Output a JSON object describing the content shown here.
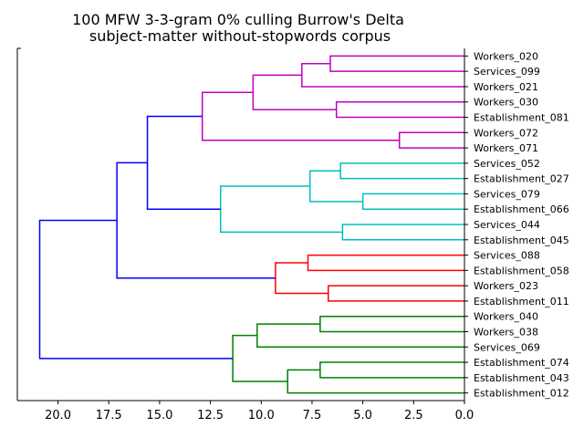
{
  "chart_data": {
    "type": "dendrogram",
    "title_lines": [
      "100 MFW 3-3-gram 0% culling Burrow's Delta",
      "subject-matter without-stopwords corpus"
    ],
    "orientation": "left",
    "xlim": [
      22.0,
      0.0
    ],
    "xticks": [
      20.0,
      17.5,
      15.0,
      12.5,
      10.0,
      7.5,
      5.0,
      2.5,
      0.0
    ],
    "xtick_labels": [
      "20.0",
      "17.5",
      "15.0",
      "12.5",
      "10.0",
      "7.5",
      "5.0",
      "2.5",
      "0.0"
    ],
    "leaves": [
      "Workers_020",
      "Services_099",
      "Workers_021",
      "Workers_030",
      "Establishment_081",
      "Workers_072",
      "Workers_071",
      "Services_052",
      "Establishment_027",
      "Services_079",
      "Establishment_066",
      "Services_044",
      "Establishment_045",
      "Services_088",
      "Establishment_058",
      "Workers_023",
      "Establishment_011",
      "Workers_040",
      "Workers_038",
      "Services_069",
      "Establishment_074",
      "Establishment_043",
      "Establishment_012"
    ],
    "colors": {
      "magenta": "#bf00bf",
      "cyan": "#00bfbf",
      "red": "#ff0000",
      "green": "#008000",
      "above_threshold": "#0000ff"
    },
    "merges": [
      {
        "id": "m1",
        "a": "L0",
        "b": "L1",
        "height": 6.6,
        "color": "magenta"
      },
      {
        "id": "m2",
        "a": "m1",
        "b": "L2",
        "height": 8.0,
        "color": "magenta"
      },
      {
        "id": "m3",
        "a": "L3",
        "b": "L4",
        "height": 6.3,
        "color": "magenta"
      },
      {
        "id": "m4",
        "a": "m2",
        "b": "m3",
        "height": 10.4,
        "color": "magenta"
      },
      {
        "id": "m5",
        "a": "L5",
        "b": "L6",
        "height": 3.2,
        "color": "magenta"
      },
      {
        "id": "m6",
        "a": "m4",
        "b": "m5",
        "height": 12.9,
        "color": "magenta"
      },
      {
        "id": "m7",
        "a": "L7",
        "b": "L8",
        "height": 6.1,
        "color": "cyan"
      },
      {
        "id": "m8",
        "a": "L9",
        "b": "L10",
        "height": 5.0,
        "color": "cyan"
      },
      {
        "id": "m9",
        "a": "m7",
        "b": "m8",
        "height": 7.6,
        "color": "cyan"
      },
      {
        "id": "m10",
        "a": "L11",
        "b": "L12",
        "height": 6.0,
        "color": "cyan"
      },
      {
        "id": "m11",
        "a": "m9",
        "b": "m10",
        "height": 12.0,
        "color": "cyan"
      },
      {
        "id": "m12",
        "a": "m6",
        "b": "m11",
        "height": 15.6,
        "color": "above_threshold"
      },
      {
        "id": "m13",
        "a": "L13",
        "b": "L14",
        "height": 7.7,
        "color": "red"
      },
      {
        "id": "m14",
        "a": "L15",
        "b": "L16",
        "height": 6.7,
        "color": "red"
      },
      {
        "id": "m15",
        "a": "m13",
        "b": "m14",
        "height": 9.3,
        "color": "red"
      },
      {
        "id": "m16",
        "a": "m12",
        "b": "m15",
        "height": 17.1,
        "color": "above_threshold"
      },
      {
        "id": "m17",
        "a": "L17",
        "b": "L18",
        "height": 7.1,
        "color": "green"
      },
      {
        "id": "m18",
        "a": "m17",
        "b": "L19",
        "height": 10.2,
        "color": "green"
      },
      {
        "id": "m19",
        "a": "L20",
        "b": "L21",
        "height": 7.1,
        "color": "green"
      },
      {
        "id": "m20",
        "a": "m19",
        "b": "L22",
        "height": 8.7,
        "color": "green"
      },
      {
        "id": "m21",
        "a": "m18",
        "b": "m20",
        "height": 11.4,
        "color": "green"
      },
      {
        "id": "m22",
        "a": "m16",
        "b": "m21",
        "height": 20.9,
        "color": "above_threshold"
      }
    ]
  }
}
